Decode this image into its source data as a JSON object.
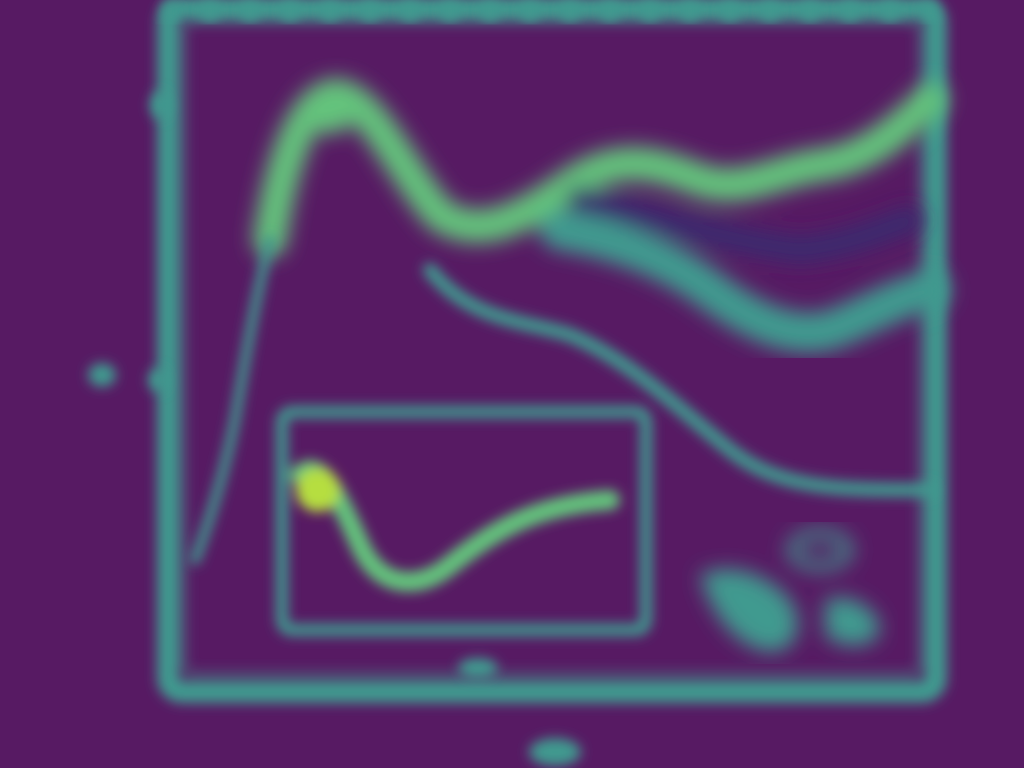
{
  "scene": {
    "kind": "blurred heatmap image",
    "background_color": "#571a63",
    "line_color": "#3f9a8f",
    "highlight_color": "#63c37c",
    "peak_color": "#b6de3f",
    "dark_patch_color": "#3b2a6e"
  }
}
